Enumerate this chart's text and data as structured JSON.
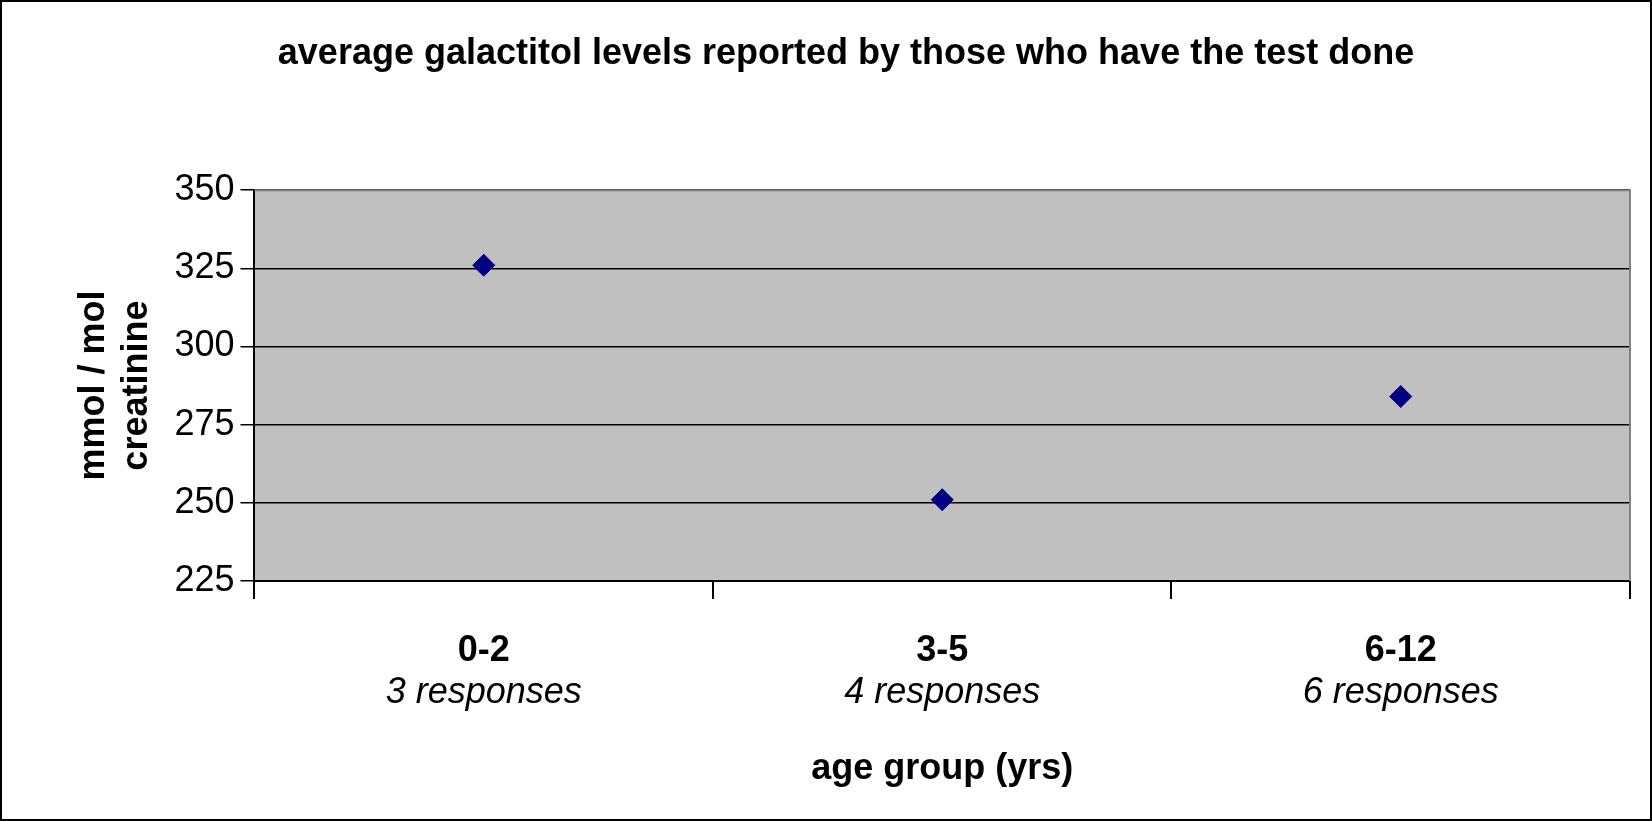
{
  "chart_data": {
    "type": "scatter",
    "title": "average galactitol levels reported by those who have the test done",
    "xlabel": "age group (yrs)",
    "ylabel": "mmol / mol creatinine",
    "categories": [
      "0-2\n3 responses",
      "3-5\n4 responses",
      "6-12\n6 responses"
    ],
    "values": [
      326,
      251,
      284
    ],
    "color": "#000080",
    "marker": "diamond",
    "ylim": [
      225,
      350
    ],
    "yticks": [
      225,
      250,
      275,
      300,
      325,
      350
    ],
    "grid": "y",
    "legend": false
  }
}
